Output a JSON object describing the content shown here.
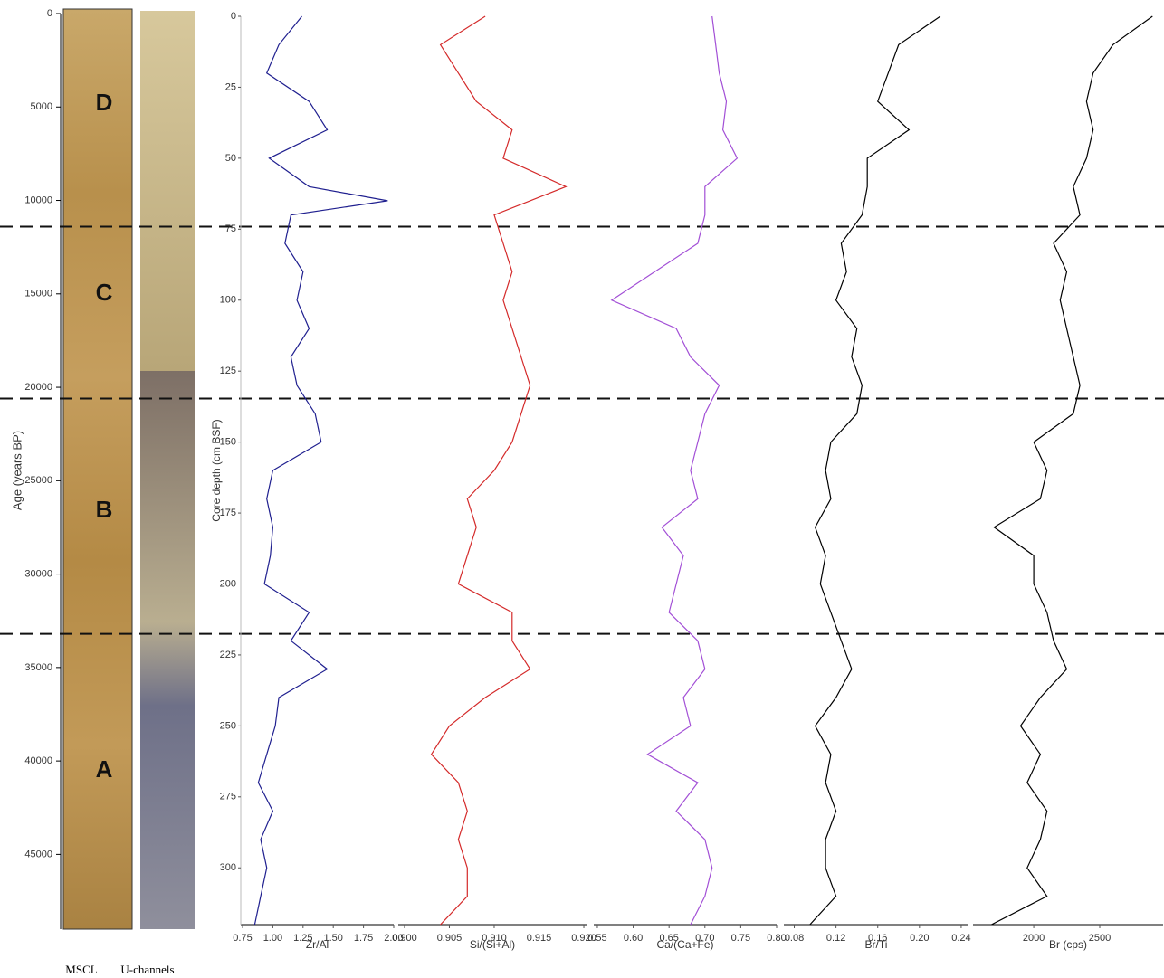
{
  "chart_data": [
    {
      "type": "core",
      "ylabel": "Age (years BP)",
      "ylim": [
        0,
        49000
      ],
      "yticks": [
        0,
        5000,
        10000,
        15000,
        20000,
        25000,
        30000,
        35000,
        40000,
        45000
      ],
      "zones": [
        "D",
        "C",
        "B",
        "A"
      ],
      "image_labels": [
        "MSCL",
        "U-channels"
      ],
      "boundaries": [
        11400,
        20600,
        33200
      ]
    },
    {
      "type": "line",
      "xlabel": "Zr/Al",
      "ylabel": "Core depth (cm BSF)",
      "ylim": [
        0,
        320
      ],
      "yticks": [
        0,
        25,
        50,
        75,
        100,
        125,
        150,
        175,
        200,
        225,
        250,
        275,
        300
      ],
      "xlim": [
        0.735,
        2.0
      ],
      "xticks": [
        0.75,
        {
          "value": 1,
          "label": "1.00"
        },
        1.25,
        {
          "value": 1.5,
          "label": "1.50"
        },
        1.75,
        {
          "value": 2,
          "label": "2.00"
        }
      ],
      "y": [
        0,
        10,
        20,
        30,
        40,
        50,
        60,
        65,
        70,
        80,
        90,
        100,
        110,
        120,
        130,
        140,
        150,
        160,
        170,
        180,
        190,
        200,
        210,
        220,
        230,
        240,
        250,
        260,
        270,
        280,
        290,
        300,
        310,
        320
      ],
      "series": [
        {
          "color": "#1f1f8f",
          "values": [
            1.24,
            1.05,
            0.95,
            1.3,
            1.45,
            0.97,
            1.3,
            1.95,
            1.15,
            1.1,
            1.25,
            1.2,
            1.3,
            1.15,
            1.2,
            1.35,
            1.4,
            1.0,
            0.95,
            1.0,
            0.98,
            0.93,
            1.3,
            1.15,
            1.45,
            1.05,
            1.02,
            0.95,
            0.88,
            1.0,
            0.9,
            0.95,
            0.9,
            0.85
          ]
        }
      ]
    },
    {
      "type": "line",
      "xlabel": "Si/(Si+Al)",
      "ylim": [
        0,
        320
      ],
      "xlim": [
        0.8993,
        0.9203
      ],
      "xticks": [
        {
          "value": 0.9,
          "label": "0.900"
        },
        0.905,
        {
          "value": 0.91,
          "label": "0.910"
        },
        0.915,
        {
          "value": 0.92,
          "label": "0.920"
        }
      ],
      "y": [
        0,
        10,
        20,
        30,
        40,
        50,
        60,
        70,
        80,
        90,
        100,
        110,
        120,
        130,
        140,
        150,
        160,
        170,
        180,
        190,
        200,
        210,
        220,
        230,
        240,
        250,
        260,
        270,
        280,
        290,
        300,
        310,
        320
      ],
      "series": [
        {
          "color": "#d42a2a",
          "values": [
            0.909,
            0.904,
            0.906,
            0.908,
            0.912,
            0.911,
            0.918,
            0.91,
            0.911,
            0.912,
            0.911,
            0.912,
            0.913,
            0.914,
            0.913,
            0.912,
            0.91,
            0.907,
            0.908,
            0.907,
            0.906,
            0.912,
            0.912,
            0.914,
            0.909,
            0.905,
            0.903,
            0.906,
            0.907,
            0.906,
            0.907,
            0.907,
            0.904
          ]
        }
      ]
    },
    {
      "type": "line",
      "xlabel": "Ca/(Ca+Fe)",
      "ylim": [
        0,
        320
      ],
      "xlim": [
        0.545,
        0.8
      ],
      "xticks": [
        0.55,
        {
          "value": 0.6,
          "label": "0.60"
        },
        0.65,
        {
          "value": 0.7,
          "label": "0.70"
        },
        0.75,
        {
          "value": 0.8,
          "label": "0.80"
        }
      ],
      "y": [
        0,
        10,
        20,
        30,
        40,
        50,
        60,
        70,
        80,
        90,
        100,
        110,
        120,
        130,
        140,
        150,
        160,
        170,
        180,
        190,
        200,
        210,
        220,
        230,
        240,
        250,
        260,
        270,
        280,
        290,
        300,
        310,
        320
      ],
      "series": [
        {
          "color": "#a24fd6",
          "values": [
            0.71,
            0.715,
            0.72,
            0.73,
            0.725,
            0.745,
            0.7,
            0.7,
            0.69,
            0.63,
            0.57,
            0.66,
            0.68,
            0.72,
            0.7,
            0.69,
            0.68,
            0.69,
            0.64,
            0.67,
            0.66,
            0.65,
            0.69,
            0.7,
            0.67,
            0.68,
            0.62,
            0.69,
            0.66,
            0.7,
            0.71,
            0.7,
            0.68
          ]
        }
      ]
    },
    {
      "type": "line",
      "xlabel": "Br/Ti",
      "ylim": [
        0,
        320
      ],
      "xlim": [
        0.07,
        0.247
      ],
      "xticks": [
        0.08,
        0.12,
        0.16,
        {
          "value": 0.2,
          "label": "0.20"
        },
        0.24
      ],
      "y": [
        0,
        10,
        20,
        30,
        40,
        50,
        60,
        70,
        80,
        90,
        100,
        110,
        120,
        130,
        140,
        150,
        160,
        170,
        180,
        190,
        200,
        210,
        220,
        230,
        240,
        250,
        260,
        270,
        280,
        290,
        300,
        310,
        320
      ],
      "series": [
        {
          "color": "#000000",
          "values": [
            0.22,
            0.18,
            0.17,
            0.16,
            0.19,
            0.15,
            0.15,
            0.145,
            0.125,
            0.13,
            0.12,
            0.14,
            0.135,
            0.145,
            0.14,
            0.115,
            0.11,
            0.115,
            0.1,
            0.11,
            0.105,
            0.115,
            0.125,
            0.135,
            0.12,
            0.1,
            0.115,
            0.11,
            0.12,
            0.11,
            0.11,
            0.12,
            0.095
          ]
        }
      ]
    },
    {
      "type": "line",
      "xlabel": "Br (cps)",
      "ylim": [
        0,
        320
      ],
      "xlim": [
        1540,
        2980
      ],
      "xticks": [
        2000,
        2500
      ],
      "y": [
        0,
        10,
        20,
        30,
        40,
        50,
        60,
        70,
        80,
        90,
        100,
        110,
        120,
        130,
        140,
        150,
        160,
        170,
        180,
        190,
        200,
        210,
        220,
        230,
        240,
        250,
        260,
        270,
        280,
        290,
        300,
        310,
        320
      ],
      "series": [
        {
          "color": "#000000",
          "values": [
            2900,
            2600,
            2450,
            2400,
            2450,
            2400,
            2300,
            2350,
            2150,
            2250,
            2200,
            2250,
            2300,
            2350,
            2300,
            2000,
            2100,
            2050,
            1700,
            2000,
            2000,
            2100,
            2150,
            2250,
            2050,
            1900,
            2050,
            1950,
            2100,
            2050,
            1950,
            2100,
            1680
          ]
        }
      ]
    }
  ]
}
